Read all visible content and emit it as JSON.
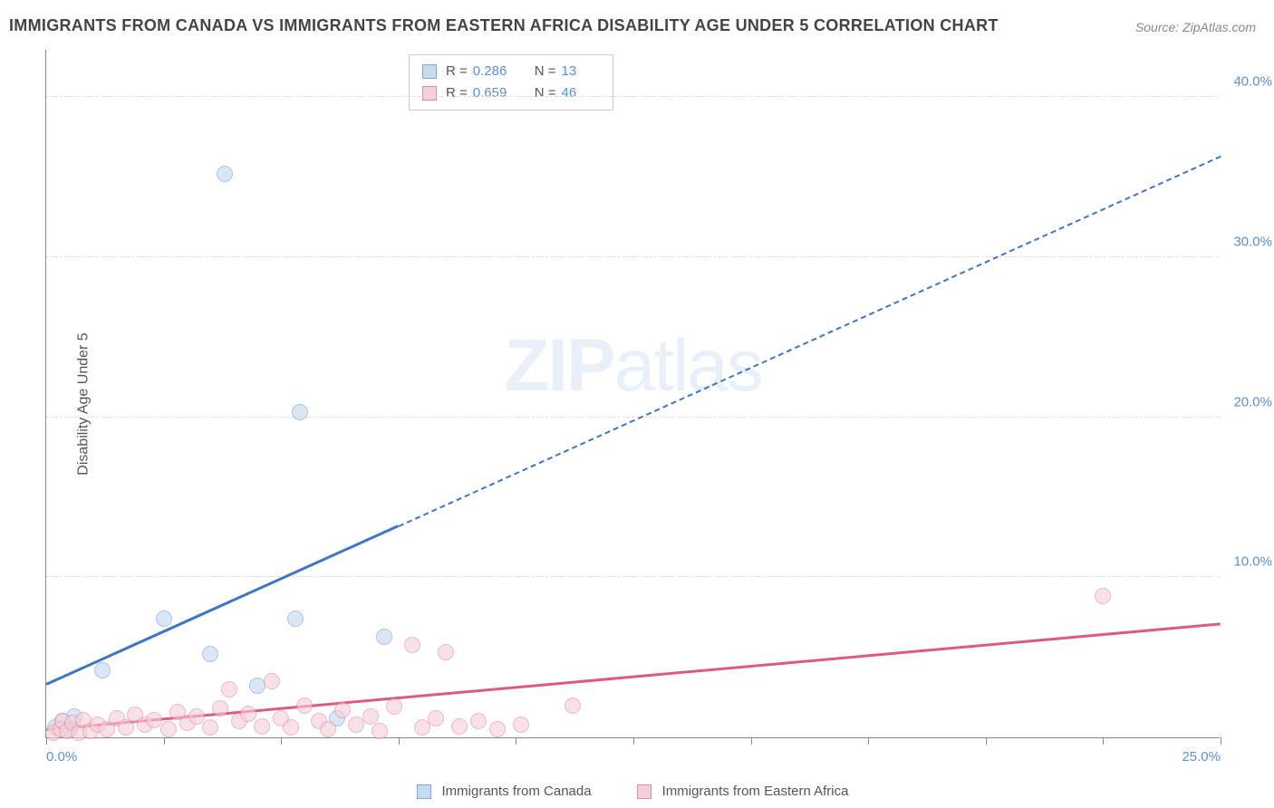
{
  "title": "IMMIGRANTS FROM CANADA VS IMMIGRANTS FROM EASTERN AFRICA DISABILITY AGE UNDER 5 CORRELATION CHART",
  "source": "Source: ZipAtlas.com",
  "ylabel": "Disability Age Under 5",
  "watermark_bold": "ZIP",
  "watermark_light": "atlas",
  "chart": {
    "type": "scatter",
    "xlim": [
      0,
      25
    ],
    "ylim": [
      0,
      43
    ],
    "background_color": "#ffffff",
    "grid_color": "#dddddd",
    "axis_color": "#888888",
    "tick_label_color": "#5b8fd6",
    "x_ticks": [
      0,
      2.5,
      5,
      7.5,
      10,
      12.5,
      15,
      17.5,
      20,
      22.5,
      25
    ],
    "x_tick_labels": {
      "0": "0.0%",
      "25": "25.0%"
    },
    "y_gridlines": [
      10,
      20,
      30,
      40
    ],
    "y_tick_labels": {
      "10": "10.0%",
      "20": "20.0%",
      "30": "30.0%",
      "40": "40.0%"
    },
    "marker_radius": 9,
    "marker_border_width": 1.2,
    "series": [
      {
        "name": "Immigrants from Canada",
        "fill": "#c9dbef",
        "stroke": "#7fa8d9",
        "fill_opacity": 0.65,
        "R": "0.286",
        "N": "13",
        "trend": {
          "x1": 0,
          "y1": 3.2,
          "x2": 25,
          "y2": 36.2,
          "solid_to_x": 7.5,
          "color": "#3d76c7"
        },
        "points": [
          {
            "x": 0.2,
            "y": 0.6
          },
          {
            "x": 0.35,
            "y": 1.0
          },
          {
            "x": 0.5,
            "y": 0.5
          },
          {
            "x": 0.6,
            "y": 1.3
          },
          {
            "x": 1.2,
            "y": 4.2
          },
          {
            "x": 2.5,
            "y": 7.4
          },
          {
            "x": 3.5,
            "y": 5.2
          },
          {
            "x": 3.8,
            "y": 35.2
          },
          {
            "x": 4.5,
            "y": 3.2
          },
          {
            "x": 5.3,
            "y": 7.4
          },
          {
            "x": 5.4,
            "y": 20.3
          },
          {
            "x": 6.2,
            "y": 1.2
          },
          {
            "x": 7.2,
            "y": 6.3
          }
        ]
      },
      {
        "name": "Immigrants from Eastern Africa",
        "fill": "#f6d0d8",
        "stroke": "#e48aa0",
        "fill_opacity": 0.6,
        "R": "0.659",
        "N": "46",
        "trend": {
          "x1": 0,
          "y1": 0.4,
          "x2": 25,
          "y2": 7.0,
          "solid_to_x": 25,
          "color": "#e05a7d"
        },
        "points": [
          {
            "x": 0.15,
            "y": 0.3
          },
          {
            "x": 0.3,
            "y": 0.5
          },
          {
            "x": 0.35,
            "y": 1.0
          },
          {
            "x": 0.45,
            "y": 0.4
          },
          {
            "x": 0.55,
            "y": 0.9
          },
          {
            "x": 0.7,
            "y": 0.3
          },
          {
            "x": 0.8,
            "y": 1.1
          },
          {
            "x": 0.95,
            "y": 0.4
          },
          {
            "x": 1.1,
            "y": 0.8
          },
          {
            "x": 1.3,
            "y": 0.5
          },
          {
            "x": 1.5,
            "y": 1.2
          },
          {
            "x": 1.7,
            "y": 0.6
          },
          {
            "x": 1.9,
            "y": 1.4
          },
          {
            "x": 2.1,
            "y": 0.8
          },
          {
            "x": 2.3,
            "y": 1.1
          },
          {
            "x": 2.6,
            "y": 0.5
          },
          {
            "x": 2.8,
            "y": 1.6
          },
          {
            "x": 3.0,
            "y": 0.9
          },
          {
            "x": 3.2,
            "y": 1.3
          },
          {
            "x": 3.5,
            "y": 0.6
          },
          {
            "x": 3.7,
            "y": 1.8
          },
          {
            "x": 3.9,
            "y": 3.0
          },
          {
            "x": 4.1,
            "y": 1.0
          },
          {
            "x": 4.3,
            "y": 1.5
          },
          {
            "x": 4.6,
            "y": 0.7
          },
          {
            "x": 4.8,
            "y": 3.5
          },
          {
            "x": 5.0,
            "y": 1.2
          },
          {
            "x": 5.2,
            "y": 0.6
          },
          {
            "x": 5.5,
            "y": 2.0
          },
          {
            "x": 5.8,
            "y": 1.0
          },
          {
            "x": 6.0,
            "y": 0.5
          },
          {
            "x": 6.3,
            "y": 1.7
          },
          {
            "x": 6.6,
            "y": 0.8
          },
          {
            "x": 6.9,
            "y": 1.3
          },
          {
            "x": 7.1,
            "y": 0.4
          },
          {
            "x": 7.4,
            "y": 1.9
          },
          {
            "x": 7.8,
            "y": 5.8
          },
          {
            "x": 8.0,
            "y": 0.6
          },
          {
            "x": 8.3,
            "y": 1.2
          },
          {
            "x": 8.5,
            "y": 5.3
          },
          {
            "x": 8.8,
            "y": 0.7
          },
          {
            "x": 9.2,
            "y": 1.0
          },
          {
            "x": 9.6,
            "y": 0.5
          },
          {
            "x": 10.1,
            "y": 0.8
          },
          {
            "x": 11.2,
            "y": 2.0
          },
          {
            "x": 22.5,
            "y": 8.8
          }
        ]
      }
    ]
  }
}
